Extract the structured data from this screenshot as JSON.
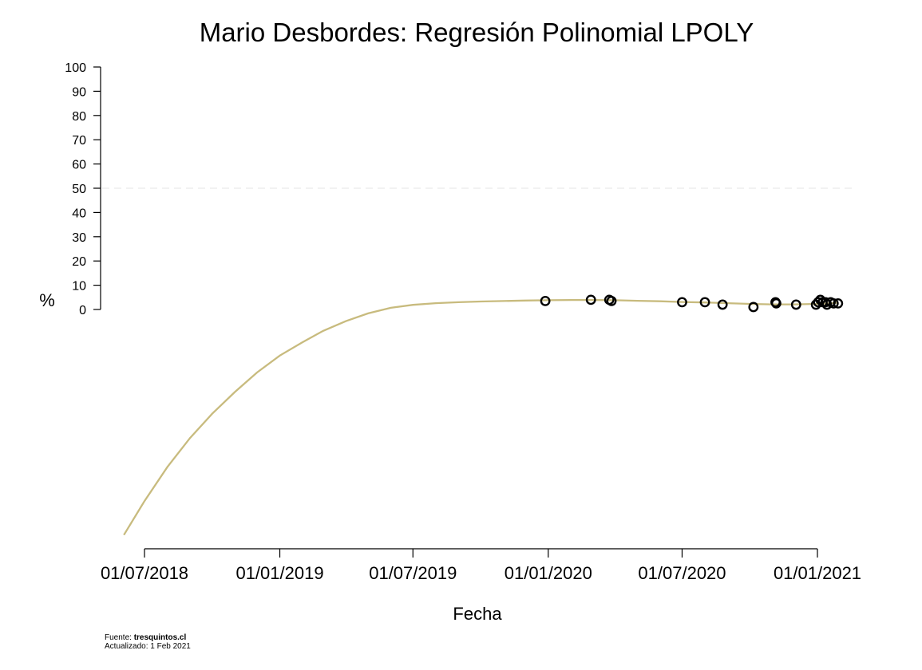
{
  "chart_data": {
    "type": "scatter",
    "title": "Mario Desbordes: Regresión Polinomial LPOLY",
    "xlabel": "Fecha",
    "ylabel": "%",
    "x_ticks": [
      "01/07/2018",
      "01/01/2019",
      "01/07/2019",
      "01/01/2020",
      "01/07/2020",
      "01/01/2021"
    ],
    "x_ticks_date": [
      "2018-07-01",
      "2019-01-01",
      "2019-07-01",
      "2020-01-01",
      "2020-07-01",
      "2021-01-01"
    ],
    "y_ticks": [
      0,
      10,
      20,
      30,
      40,
      50,
      60,
      70,
      80,
      90,
      100
    ],
    "ylim": [
      0,
      100
    ],
    "reference_line": {
      "y": 50,
      "style": "dashed",
      "color": "#e6e6e6"
    },
    "grid": false,
    "colors": {
      "fit_line": "#c8bb7e",
      "points": "#000000"
    },
    "points": [
      {
        "x": "2019-12-28",
        "y": 3.5
      },
      {
        "x": "2020-02-28",
        "y": 4
      },
      {
        "x": "2020-03-24",
        "y": 4
      },
      {
        "x": "2020-03-27",
        "y": 3.5
      },
      {
        "x": "2020-07-01",
        "y": 3
      },
      {
        "x": "2020-08-01",
        "y": 3
      },
      {
        "x": "2020-08-25",
        "y": 2
      },
      {
        "x": "2020-10-06",
        "y": 1
      },
      {
        "x": "2020-11-05",
        "y": 3
      },
      {
        "x": "2020-11-06",
        "y": 2.5
      },
      {
        "x": "2020-12-03",
        "y": 2
      },
      {
        "x": "2020-12-30",
        "y": 2
      },
      {
        "x": "2021-01-02",
        "y": 3
      },
      {
        "x": "2021-01-05",
        "y": 4
      },
      {
        "x": "2021-01-08",
        "y": 3
      },
      {
        "x": "2021-01-12",
        "y": 3
      },
      {
        "x": "2021-01-14",
        "y": 2
      },
      {
        "x": "2021-01-19",
        "y": 3
      },
      {
        "x": "2021-01-23",
        "y": 2.5
      },
      {
        "x": "2021-01-29",
        "y": 2.5
      }
    ],
    "fit_line": [
      {
        "x": "2018-06-03",
        "y": -93
      },
      {
        "x": "2018-07-01",
        "y": -79
      },
      {
        "x": "2018-08-01",
        "y": -65
      },
      {
        "x": "2018-09-01",
        "y": -53
      },
      {
        "x": "2018-10-01",
        "y": -43
      },
      {
        "x": "2018-11-01",
        "y": -34
      },
      {
        "x": "2018-12-01",
        "y": -26
      },
      {
        "x": "2019-01-01",
        "y": -19
      },
      {
        "x": "2019-02-01",
        "y": -13.5
      },
      {
        "x": "2019-03-01",
        "y": -8.8
      },
      {
        "x": "2019-04-01",
        "y": -4.8
      },
      {
        "x": "2019-05-01",
        "y": -1.6
      },
      {
        "x": "2019-06-01",
        "y": 0.7
      },
      {
        "x": "2019-07-01",
        "y": 1.9
      },
      {
        "x": "2019-08-01",
        "y": 2.6
      },
      {
        "x": "2019-09-01",
        "y": 3.0
      },
      {
        "x": "2019-10-01",
        "y": 3.3
      },
      {
        "x": "2019-11-01",
        "y": 3.5
      },
      {
        "x": "2019-12-01",
        "y": 3.7
      },
      {
        "x": "2020-01-01",
        "y": 3.8
      },
      {
        "x": "2020-02-01",
        "y": 3.9
      },
      {
        "x": "2020-03-01",
        "y": 3.9
      },
      {
        "x": "2020-04-01",
        "y": 3.8
      },
      {
        "x": "2020-05-01",
        "y": 3.6
      },
      {
        "x": "2020-06-01",
        "y": 3.4
      },
      {
        "x": "2020-07-01",
        "y": 3.1
      },
      {
        "x": "2020-08-01",
        "y": 2.9
      },
      {
        "x": "2020-09-01",
        "y": 2.6
      },
      {
        "x": "2020-10-01",
        "y": 2.3
      },
      {
        "x": "2020-11-01",
        "y": 2.1
      },
      {
        "x": "2020-12-01",
        "y": 2.1
      },
      {
        "x": "2021-01-01",
        "y": 2.3
      },
      {
        "x": "2021-01-29",
        "y": 2.8
      }
    ]
  },
  "footer": {
    "source_label": "Fuente: ",
    "source_value": "tresquintos.cl",
    "updated": "Actualizado: 1 Feb 2021"
  }
}
